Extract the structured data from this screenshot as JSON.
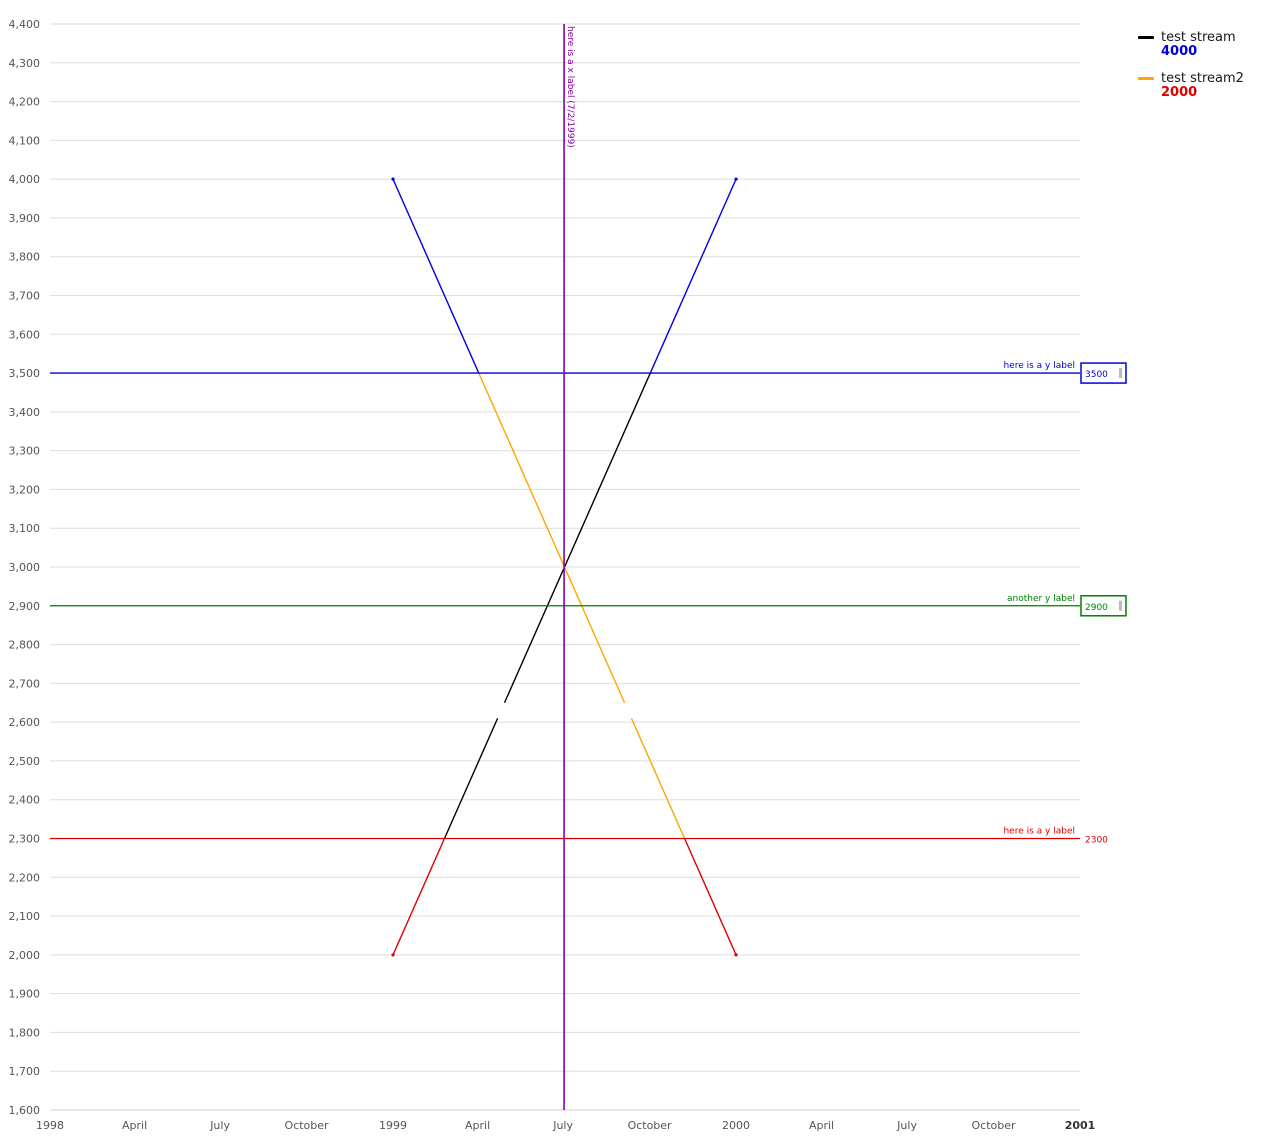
{
  "chart_data": {
    "type": "line",
    "title": "",
    "xlabel": "",
    "ylabel": "",
    "xlim": [
      "1998-01-01",
      "2001-01-01"
    ],
    "ylim": [
      1600,
      4400
    ],
    "y_ticks": [
      1600,
      1700,
      1800,
      1900,
      2000,
      2100,
      2200,
      2300,
      2400,
      2500,
      2600,
      2700,
      2800,
      2900,
      3000,
      3100,
      3200,
      3300,
      3400,
      3500,
      3600,
      3700,
      3800,
      3900,
      4000,
      4100,
      4200,
      4300,
      4400
    ],
    "y_tick_labels": [
      "1,600",
      "1,700",
      "1,800",
      "1,900",
      "2,000",
      "2,100",
      "2,200",
      "2,300",
      "2,400",
      "2,500",
      "2,600",
      "2,700",
      "2,800",
      "2,900",
      "3,000",
      "3,100",
      "3,200",
      "3,300",
      "3,400",
      "3,500",
      "3,600",
      "3,700",
      "3,800",
      "3,900",
      "4,000",
      "4,100",
      "4,200",
      "4,300",
      "4,400"
    ],
    "x_ticks": [
      {
        "date": "1998-01-01",
        "label": "1998",
        "bold": false
      },
      {
        "date": "1998-04-01",
        "label": "April",
        "bold": false
      },
      {
        "date": "1998-07-01",
        "label": "July",
        "bold": false
      },
      {
        "date": "1998-10-01",
        "label": "October",
        "bold": false
      },
      {
        "date": "1999-01-01",
        "label": "1999",
        "bold": false
      },
      {
        "date": "1999-04-01",
        "label": "April",
        "bold": false
      },
      {
        "date": "1999-07-01",
        "label": "July",
        "bold": false
      },
      {
        "date": "1999-10-01",
        "label": "October",
        "bold": false
      },
      {
        "date": "2000-01-01",
        "label": "2000",
        "bold": false
      },
      {
        "date": "2000-04-01",
        "label": "April",
        "bold": false
      },
      {
        "date": "2000-07-01",
        "label": "July",
        "bold": false
      },
      {
        "date": "2000-10-01",
        "label": "October",
        "bold": false
      },
      {
        "date": "2001-01-01",
        "label": "2001",
        "bold": true
      }
    ],
    "grid": true,
    "legend_position": "top-right",
    "series": [
      {
        "name": "test stream",
        "color": "#000000",
        "legend_value": "4000",
        "legend_value_color": "#0000dd",
        "points": [
          {
            "x": "1999-01-01",
            "y": 2000
          },
          {
            "x": "2000-01-01",
            "y": 4000
          }
        ],
        "gap": {
          "start_y": 2610,
          "end_y": 2650
        }
      },
      {
        "name": "test stream2",
        "color": "#ffa500",
        "legend_value": "2000",
        "legend_value_color": "#dd0000",
        "points": [
          {
            "x": "1999-01-01",
            "y": 4000
          },
          {
            "x": "2000-01-01",
            "y": 2000
          }
        ],
        "gap": {
          "start_y": 2650,
          "end_y": 2610
        }
      }
    ],
    "thresholds": [
      {
        "y": 3500,
        "label": "here is a y label",
        "value_label": "3500",
        "color": "#0000dd",
        "boxed": true,
        "above": true
      },
      {
        "y": 2900,
        "label": "another y label",
        "value_label": "2900",
        "color": "#008000",
        "boxed": true,
        "above": false
      },
      {
        "y": 2300,
        "label": "here is a y label",
        "value_label": "2300",
        "color": "#dd0000",
        "boxed": false,
        "below": true
      }
    ],
    "x_markers": [
      {
        "x": "1999-07-02",
        "label": "here is a x label (7/2/1999)",
        "color": "#8800aa"
      }
    ]
  }
}
